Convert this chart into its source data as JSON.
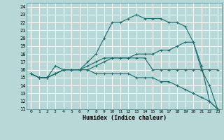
{
  "title": "",
  "xlabel": "Humidex (Indice chaleur)",
  "background_color": "#b8d8d8",
  "grid_color": "#ffffff",
  "line_color": "#1a6b6b",
  "xlim": [
    -0.5,
    23.5
  ],
  "ylim": [
    11,
    24.5
  ],
  "xticks": [
    0,
    1,
    2,
    3,
    4,
    5,
    6,
    7,
    8,
    9,
    10,
    11,
    12,
    13,
    14,
    15,
    16,
    17,
    18,
    19,
    20,
    21,
    22,
    23
  ],
  "yticks": [
    11,
    12,
    13,
    14,
    15,
    16,
    17,
    18,
    19,
    20,
    21,
    22,
    23,
    24
  ],
  "lines": [
    {
      "x": [
        0,
        1,
        2,
        3,
        4,
        5,
        6,
        7,
        8,
        9,
        10,
        11,
        12,
        13,
        14,
        15,
        16,
        17,
        18,
        19,
        20,
        21,
        22,
        23
      ],
      "y": [
        15.5,
        15,
        15,
        16.5,
        16,
        16,
        16,
        17,
        18,
        20,
        22,
        22,
        22.5,
        23,
        22.5,
        22.5,
        22.5,
        22,
        22,
        21.5,
        19.5,
        16,
        14,
        11
      ]
    },
    {
      "x": [
        0,
        1,
        2,
        3,
        4,
        5,
        6,
        7,
        8,
        9,
        10,
        11,
        12,
        13,
        14,
        15,
        16,
        17,
        18,
        19,
        20,
        21,
        22,
        23
      ],
      "y": [
        15.5,
        15,
        15,
        15.5,
        16,
        16,
        16,
        16.5,
        17,
        17.5,
        17.5,
        17.5,
        17.5,
        17.5,
        17.5,
        16,
        16,
        16,
        16,
        16,
        16,
        16,
        16,
        16
      ]
    },
    {
      "x": [
        0,
        1,
        2,
        3,
        4,
        5,
        6,
        7,
        8,
        9,
        10,
        11,
        12,
        13,
        14,
        15,
        16,
        17,
        18,
        19,
        20,
        21,
        22,
        23
      ],
      "y": [
        15.5,
        15,
        15,
        15.5,
        16,
        16,
        16,
        16,
        16.5,
        17,
        17.5,
        17.5,
        17.5,
        18,
        18,
        18,
        18.5,
        18.5,
        19,
        19.5,
        19.5,
        16.5,
        12,
        11
      ]
    },
    {
      "x": [
        0,
        1,
        2,
        3,
        4,
        5,
        6,
        7,
        8,
        9,
        10,
        11,
        12,
        13,
        14,
        15,
        16,
        17,
        18,
        19,
        20,
        21,
        22,
        23
      ],
      "y": [
        15.5,
        15,
        15,
        15.5,
        16,
        16,
        16,
        16,
        15.5,
        15.5,
        15.5,
        15.5,
        15.5,
        15,
        15,
        15,
        14.5,
        14.5,
        14,
        13.5,
        13,
        12.5,
        12,
        11
      ]
    }
  ]
}
